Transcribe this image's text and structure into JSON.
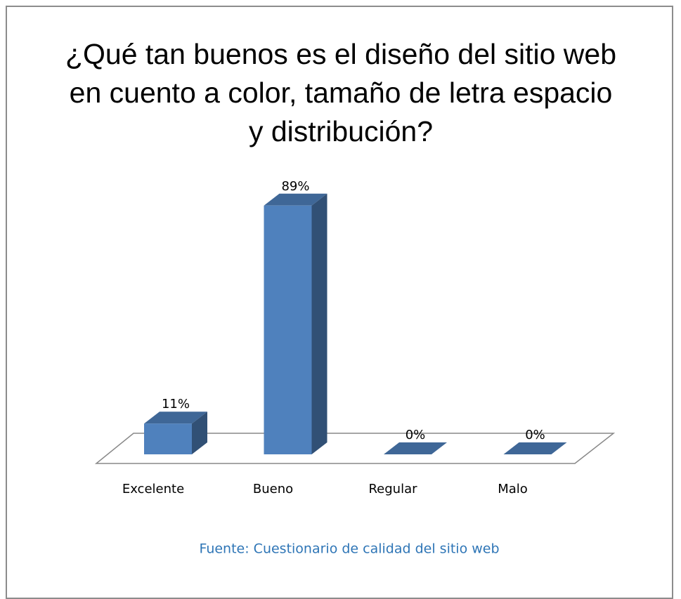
{
  "chart_data": {
    "type": "bar3d",
    "title": "¿Qué tan buenos es el diseño del sitio web en cuento a color, tamaño de letra espacio y distribución?",
    "categories": [
      "Excelente",
      "Bueno",
      "Regular",
      "Malo"
    ],
    "values": [
      11,
      89,
      0,
      0
    ],
    "value_labels": [
      "11%",
      "89%",
      "0%",
      "0%"
    ],
    "color": "#4f81bd",
    "source": "Fuente: Cuestionario de calidad del sitio web"
  }
}
